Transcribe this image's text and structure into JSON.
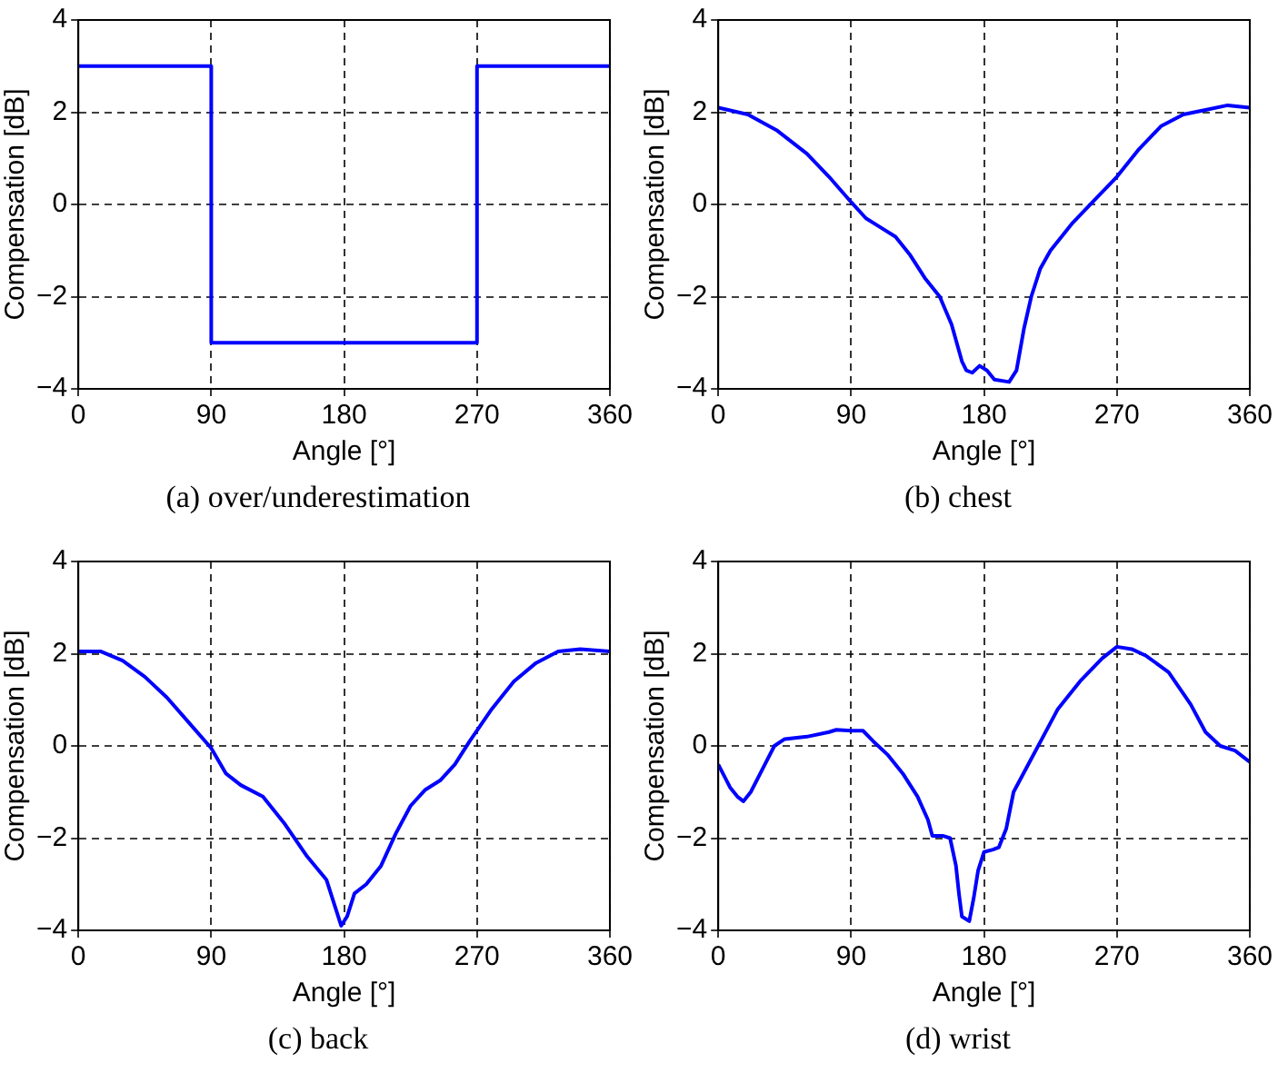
{
  "chart_data": [
    {
      "type": "line",
      "xlabel": "Angle [°]",
      "ylabel": "Compensation [dB]",
      "color": "#0000ff",
      "grid": true,
      "xlim": [
        0,
        360
      ],
      "ylim": [
        -4,
        4
      ],
      "xticks": [
        0,
        90,
        180,
        270,
        360
      ],
      "yticks": [
        -4,
        -2,
        0,
        2,
        4
      ],
      "annotations": [
        "(a) over/underestimation"
      ],
      "x": [
        0,
        90,
        90,
        270,
        270,
        360
      ],
      "values": [
        3,
        3,
        -3,
        -3,
        3,
        3
      ]
    },
    {
      "type": "line",
      "xlabel": "Angle [°]",
      "ylabel": "Compensation [dB]",
      "color": "#0000ff",
      "grid": true,
      "xlim": [
        0,
        360
      ],
      "ylim": [
        -4,
        4
      ],
      "xticks": [
        0,
        90,
        180,
        270,
        360
      ],
      "yticks": [
        -4,
        -2,
        0,
        2,
        4
      ],
      "annotations": [
        "(b) chest"
      ],
      "x": [
        0,
        20,
        40,
        60,
        75,
        90,
        100,
        110,
        120,
        130,
        140,
        150,
        158,
        165,
        168,
        172,
        177,
        182,
        187,
        197,
        202,
        207,
        212,
        218,
        225,
        240,
        255,
        270,
        285,
        300,
        315,
        330,
        345,
        360
      ],
      "values": [
        2.1,
        1.95,
        1.6,
        1.1,
        0.6,
        0.05,
        -0.3,
        -0.5,
        -0.7,
        -1.1,
        -1.6,
        -2.0,
        -2.6,
        -3.4,
        -3.6,
        -3.65,
        -3.5,
        -3.6,
        -3.8,
        -3.85,
        -3.6,
        -2.7,
        -2.0,
        -1.4,
        -1.0,
        -0.4,
        0.1,
        0.6,
        1.2,
        1.7,
        1.95,
        2.05,
        2.15,
        2.1
      ]
    },
    {
      "type": "line",
      "xlabel": "Angle [°]",
      "ylabel": "Compensation [dB]",
      "color": "#0000ff",
      "grid": true,
      "xlim": [
        0,
        360
      ],
      "ylim": [
        -4,
        4
      ],
      "xticks": [
        0,
        90,
        180,
        270,
        360
      ],
      "yticks": [
        -4,
        -2,
        0,
        2,
        4
      ],
      "annotations": [
        "(c) back"
      ],
      "x": [
        0,
        15,
        30,
        45,
        60,
        75,
        90,
        100,
        110,
        125,
        140,
        155,
        168,
        175,
        178,
        182,
        187,
        195,
        205,
        215,
        225,
        235,
        245,
        255,
        265,
        280,
        295,
        310,
        325,
        340,
        360
      ],
      "values": [
        2.05,
        2.05,
        1.85,
        1.5,
        1.05,
        0.5,
        -0.05,
        -0.6,
        -0.85,
        -1.1,
        -1.7,
        -2.4,
        -2.9,
        -3.6,
        -3.9,
        -3.7,
        -3.2,
        -3.0,
        -2.6,
        -1.9,
        -1.3,
        -0.95,
        -0.75,
        -0.4,
        0.1,
        0.8,
        1.4,
        1.8,
        2.05,
        2.1,
        2.05
      ]
    },
    {
      "type": "line",
      "xlabel": "Angle [°]",
      "ylabel": "Compensation [dB]",
      "color": "#0000ff",
      "grid": true,
      "xlim": [
        0,
        360
      ],
      "ylim": [
        -4,
        4
      ],
      "xticks": [
        0,
        90,
        180,
        270,
        360
      ],
      "yticks": [
        -4,
        -2,
        0,
        2,
        4
      ],
      "annotations": [
        "(d) wrist"
      ],
      "x": [
        0,
        8,
        13,
        17,
        22,
        30,
        38,
        45,
        60,
        75,
        80,
        90,
        98,
        105,
        115,
        125,
        135,
        142,
        145,
        152,
        157,
        161,
        163,
        165,
        170,
        173,
        176,
        180,
        186,
        190,
        195,
        200,
        210,
        220,
        230,
        245,
        260,
        270,
        280,
        290,
        305,
        320,
        330,
        340,
        350,
        360
      ],
      "values": [
        -0.4,
        -0.9,
        -1.1,
        -1.2,
        -1.0,
        -0.5,
        0.0,
        0.15,
        0.2,
        0.3,
        0.35,
        0.33,
        0.33,
        0.1,
        -0.2,
        -0.6,
        -1.1,
        -1.6,
        -1.95,
        -1.95,
        -2.0,
        -2.6,
        -3.2,
        -3.7,
        -3.8,
        -3.3,
        -2.7,
        -2.3,
        -2.25,
        -2.2,
        -1.8,
        -1.0,
        -0.4,
        0.2,
        0.8,
        1.4,
        1.9,
        2.15,
        2.1,
        1.95,
        1.6,
        0.9,
        0.3,
        0.0,
        -0.1,
        -0.35
      ]
    }
  ]
}
